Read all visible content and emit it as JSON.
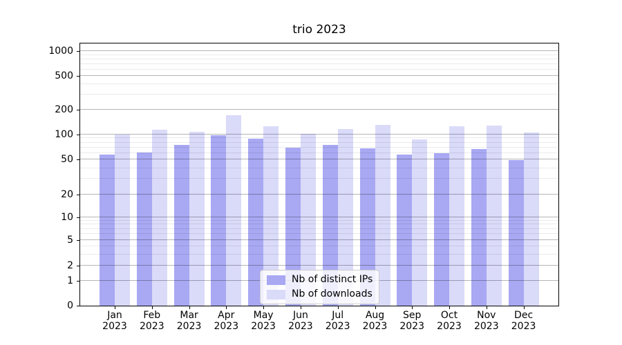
{
  "title": "trio 2023",
  "chart_data": {
    "type": "bar",
    "title": "trio 2023",
    "categories": [
      "Jan",
      "Feb",
      "Mar",
      "Apr",
      "May",
      "Jun",
      "Jul",
      "Aug",
      "Sep",
      "Oct",
      "Nov",
      "Dec"
    ],
    "year": "2023",
    "series": [
      {
        "name": "Nb of distinct IPs",
        "color": "#a8a8f3",
        "values": [
          57,
          61,
          75,
          97,
          89,
          70,
          75,
          68,
          57,
          59,
          67,
          49
        ]
      },
      {
        "name": "Nb of downloads",
        "color": "#dadaf9",
        "values": [
          100,
          114,
          107,
          170,
          125,
          102,
          116,
          130,
          87,
          126,
          128,
          106
        ]
      }
    ],
    "xlabel": "",
    "ylabel": "",
    "yscale": "symlog",
    "ylim": [
      0,
      1240
    ],
    "y_ticks": [
      0,
      1,
      2,
      5,
      10,
      20,
      50,
      100,
      200,
      500,
      1000
    ],
    "y_minor_ticks": [
      3,
      4,
      6,
      7,
      8,
      9,
      30,
      40,
      60,
      70,
      80,
      90,
      300,
      400,
      600,
      700,
      800,
      900
    ],
    "y_scale_anchors": [
      [
        0,
        0.0
      ],
      [
        1,
        0.0942
      ],
      [
        2,
        0.1518
      ],
      [
        5,
        0.2513
      ],
      [
        10,
        0.3377
      ],
      [
        20,
        0.4241
      ],
      [
        50,
        0.5576
      ],
      [
        100,
        0.6531
      ],
      [
        200,
        0.7487
      ],
      [
        500,
        0.8757
      ],
      [
        1000,
        0.9712
      ]
    ],
    "grid": true,
    "legend_position": "lower center",
    "colors": {
      "major_grid": "rgba(0,0,0,0.29)",
      "minor_grid": "rgba(0,0,0,0.08)",
      "axis": "#000000",
      "background": "#ffffff"
    }
  }
}
